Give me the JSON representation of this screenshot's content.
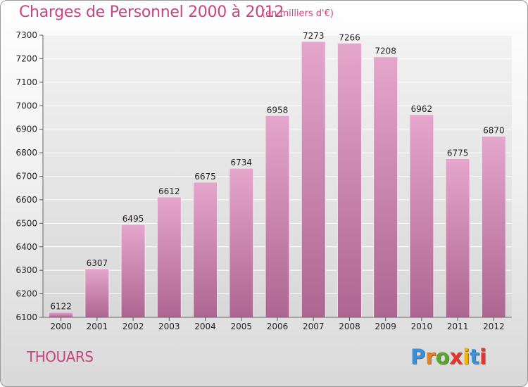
{
  "title": "Charges de Personnel 2000 à 2012",
  "subtitle": "(en milliers d'€)",
  "town": "THOUARS",
  "logo": {
    "letters": [
      "P",
      "r",
      "o",
      "x",
      "i",
      "t",
      "i"
    ],
    "colors": [
      "#3a8fd6",
      "#f07d1a",
      "#5aa52a",
      "#e8322a",
      "#f4b400",
      "#3a8fd6",
      "#e8322a"
    ]
  },
  "colors": {
    "bar_top": "#e5a6cc",
    "bar_bottom": "#ad6691",
    "title": "#c94580"
  },
  "chart_data": {
    "type": "bar",
    "title": "Charges de Personnel 2000 à 2012",
    "subtitle": "(en milliers d'€)",
    "xlabel": "",
    "ylabel": "",
    "categories": [
      "2000",
      "2001",
      "2002",
      "2003",
      "2004",
      "2005",
      "2006",
      "2007",
      "2008",
      "2009",
      "2010",
      "2011",
      "2012"
    ],
    "values": [
      6122,
      6307,
      6495,
      6612,
      6675,
      6734,
      6958,
      7273,
      7266,
      7208,
      6962,
      6775,
      6870
    ],
    "ylim": [
      6100,
      7300
    ],
    "yticks": [
      6100,
      6200,
      6300,
      6400,
      6500,
      6600,
      6700,
      6800,
      6900,
      7000,
      7100,
      7200,
      7300
    ],
    "grid": true
  }
}
